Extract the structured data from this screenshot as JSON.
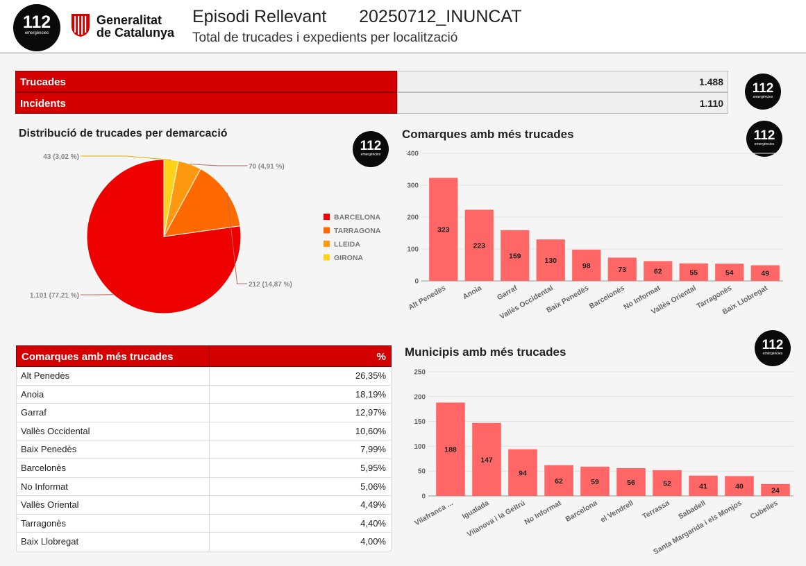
{
  "header": {
    "logo_num": "112",
    "logo_sub": "emergències",
    "gencat_line1": "Generalitat",
    "gencat_line2": "de Catalunya",
    "title": "Episodi Rellevant",
    "code": "20250712_INUNCAT",
    "subtitle": "Total de trucades i expedients per localització"
  },
  "kpis": [
    {
      "label": "Trucades",
      "value": "1.488"
    },
    {
      "label": "Incidents",
      "value": "1.110"
    }
  ],
  "colors": {
    "brand_red": "#d40000",
    "bar": "#ff6666",
    "pie": [
      "#ee0000",
      "#ff6a00",
      "#ff9a10",
      "#ffd21a"
    ]
  },
  "chart_data": [
    {
      "type": "pie",
      "title": "Distribució de trucades per demarcació",
      "legend_position": "right",
      "slices": [
        {
          "name": "BARCELONA",
          "value": 1101,
          "label": "1.101 (77,21 %)"
        },
        {
          "name": "TARRAGONA",
          "value": 212,
          "label": "212 (14,87 %)"
        },
        {
          "name": "LLEIDA",
          "value": 70,
          "label": "70 (4,91 %)"
        },
        {
          "name": "GIRONA",
          "value": 43,
          "label": "43 (3,02 %)"
        }
      ]
    },
    {
      "type": "bar",
      "title": "Comarques amb més trucades",
      "categories": [
        "Alt Penedès",
        "Anoia",
        "Garraf",
        "Vallès Occidental",
        "Baix Penedès",
        "Barcelonès",
        "No Informat",
        "Vallès Oriental",
        "Tarragonès",
        "Baix Llobregat"
      ],
      "values": [
        323,
        223,
        159,
        130,
        98,
        73,
        62,
        55,
        54,
        49
      ],
      "ylim": [
        0,
        400
      ],
      "yticks": [
        0,
        100,
        200,
        300,
        400
      ],
      "grid": true
    },
    {
      "type": "bar",
      "title": "Municipis amb més trucades",
      "categories": [
        "Vilafranca ...",
        "Igualada",
        "Vilanova i la Geltrú",
        "No Informat",
        "Barcelona",
        "el Vendrell",
        "Terrassa",
        "Sabadell",
        "Santa Margarida i els Monjos",
        "Cubelles"
      ],
      "values": [
        188,
        147,
        94,
        62,
        59,
        56,
        52,
        41,
        40,
        24
      ],
      "ylim": [
        0,
        250
      ],
      "yticks": [
        0,
        50,
        100,
        150,
        200,
        250
      ],
      "grid": true
    }
  ],
  "table": {
    "headers": [
      "Comarques amb més trucades",
      "%"
    ],
    "rows": [
      [
        "Alt Penedès",
        "26,35%"
      ],
      [
        "Anoia",
        "18,19%"
      ],
      [
        "Garraf",
        "12,97%"
      ],
      [
        "Vallès Occidental",
        "10,60%"
      ],
      [
        "Baix Penedès",
        "7,99%"
      ],
      [
        "Barcelonès",
        "5,95%"
      ],
      [
        "No Informat",
        "5,06%"
      ],
      [
        "Vallès Oriental",
        "4,49%"
      ],
      [
        "Tarragonès",
        "4,40%"
      ],
      [
        "Baix Llobregat",
        "4,00%"
      ]
    ]
  }
}
